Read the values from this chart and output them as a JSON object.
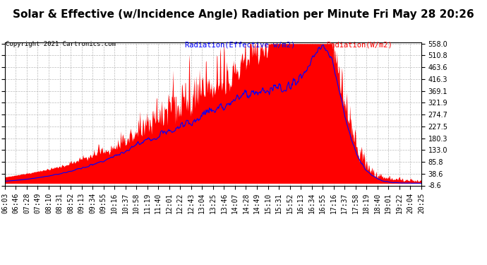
{
  "title": "Solar & Effective (w/Incidence Angle) Radiation per Minute Fri May 28 20:26",
  "copyright": "Copyright 2021 Cartronics.com",
  "legend_blue": "Radiation(Effective w/m2)",
  "legend_red": "Radiation(W/m2)",
  "ymin": -8.6,
  "ymax": 558.0,
  "yticks": [
    558.0,
    510.8,
    463.6,
    416.3,
    369.1,
    321.9,
    274.7,
    227.5,
    180.3,
    133.0,
    85.8,
    38.6,
    -8.6
  ],
  "background_color": "#ffffff",
  "plot_bg_color": "#ffffff",
  "grid_color": "#aaaaaa",
  "red_fill_color": "#ff0000",
  "blue_line_color": "#0000ff",
  "title_fontsize": 11,
  "tick_fontsize": 7,
  "n_points": 870,
  "xtick_labels": [
    "06:03",
    "06:46",
    "07:28",
    "07:49",
    "08:10",
    "08:31",
    "08:52",
    "09:13",
    "09:34",
    "09:55",
    "10:16",
    "10:37",
    "10:58",
    "11:19",
    "11:40",
    "12:01",
    "12:22",
    "12:43",
    "13:04",
    "13:25",
    "13:46",
    "14:07",
    "14:28",
    "14:49",
    "15:10",
    "15:31",
    "15:52",
    "16:13",
    "16:34",
    "16:55",
    "17:16",
    "17:37",
    "17:58",
    "18:19",
    "18:40",
    "19:01",
    "19:22",
    "20:04",
    "20:25"
  ]
}
